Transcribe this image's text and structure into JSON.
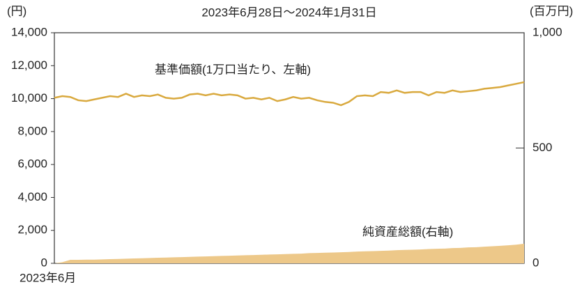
{
  "chart_data": {
    "type": "line",
    "title": "2023年6月28日～2024年1月31日",
    "y_label": "(円)",
    "y2_label": "(百万円)",
    "categories": [
      "2023年6月",
      null,
      null,
      null,
      null,
      null,
      null,
      null,
      null,
      null,
      null,
      null,
      null,
      null,
      null,
      null,
      null,
      null,
      null,
      null,
      null,
      null,
      null,
      null,
      null,
      null,
      null,
      null,
      null,
      null,
      null,
      null,
      null,
      null,
      null,
      null,
      null,
      null,
      null,
      null,
      null,
      null,
      null,
      null,
      null,
      null,
      null,
      null,
      null,
      null,
      null,
      null,
      null,
      null,
      null,
      null,
      null,
      null,
      null,
      null
    ],
    "ylim": [
      0,
      14000
    ],
    "yticks": [
      {
        "value": 0,
        "label": "0"
      },
      {
        "value": 2000,
        "label": "2,000"
      },
      {
        "value": 4000,
        "label": "4,000"
      },
      {
        "value": 6000,
        "label": "6,000"
      },
      {
        "value": 8000,
        "label": "8,000"
      },
      {
        "value": 10000,
        "label": "10,000"
      },
      {
        "value": 12000,
        "label": "12,000"
      },
      {
        "value": 14000,
        "label": "14,000"
      }
    ],
    "y2lim": [
      0,
      1000
    ],
    "y2ticks": [
      0,
      500,
      {
        "value": 1000,
        "label": "1,000"
      }
    ],
    "series": [
      {
        "name": "基準価額(1万口当たり、左軸)",
        "type": "line",
        "color": "#d9a93e",
        "values": [
          10050,
          10150,
          10100,
          9900,
          9850,
          9950,
          10050,
          10150,
          10100,
          10300,
          10100,
          10200,
          10150,
          10250,
          10050,
          10000,
          10050,
          10250,
          10300,
          10200,
          10300,
          10200,
          10250,
          10200,
          10000,
          10050,
          9950,
          10050,
          9850,
          9950,
          10100,
          10000,
          10050,
          9900,
          9800,
          9750,
          9600,
          9800,
          10150,
          10200,
          10150,
          10400,
          10350,
          10500,
          10350,
          10400,
          10400,
          10200,
          10400,
          10350,
          10500,
          10400,
          10450,
          10500,
          10600,
          10650,
          10700,
          10800,
          10900,
          11000
        ]
      },
      {
        "name": "純資産総額(右軸)",
        "type": "area",
        "color": "#edc889",
        "axis": "y2",
        "values": [
          0,
          5,
          15,
          15,
          16,
          16,
          17,
          18,
          19,
          20,
          21,
          22,
          23,
          24,
          25,
          26,
          27,
          28,
          29,
          30,
          31,
          32,
          33,
          34,
          35,
          36,
          37,
          38,
          39,
          40,
          41,
          42,
          44,
          45,
          46,
          47,
          48,
          49,
          51,
          52,
          53,
          54,
          55,
          57,
          58,
          59,
          60,
          62,
          63,
          64,
          66,
          67,
          69,
          70,
          72,
          74,
          76,
          78,
          81,
          85
        ]
      }
    ]
  }
}
